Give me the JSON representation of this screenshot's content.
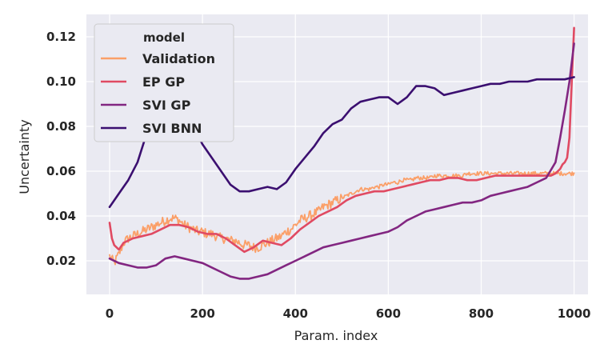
{
  "chart_data": {
    "type": "line",
    "title": "",
    "xlabel": "Param. index",
    "ylabel": "Uncertainty",
    "xlim": [
      -50,
      1030
    ],
    "ylim": [
      0.005,
      0.13
    ],
    "xticks": [
      0,
      200,
      400,
      600,
      800,
      1000
    ],
    "xtick_labels": [
      "0",
      "200",
      "400",
      "600",
      "800",
      "1000"
    ],
    "yticks": [
      0.02,
      0.04,
      0.06,
      0.08,
      0.1,
      0.12
    ],
    "ytick_labels": [
      "0.02",
      "0.04",
      "0.06",
      "0.08",
      "0.10",
      "0.12"
    ],
    "grid": true,
    "background": "#eaeaf2",
    "legend": {
      "title": "model",
      "placement": "top-left"
    },
    "series": [
      {
        "name": "Validation",
        "color": "#fb9f68",
        "noisy": true,
        "x": [
          0,
          10,
          20,
          30,
          40,
          50,
          60,
          70,
          80,
          90,
          100,
          110,
          120,
          130,
          140,
          150,
          160,
          170,
          180,
          190,
          200,
          210,
          220,
          230,
          240,
          250,
          260,
          270,
          280,
          290,
          300,
          310,
          320,
          330,
          340,
          350,
          360,
          370,
          380,
          390,
          400,
          410,
          420,
          430,
          440,
          450,
          460,
          470,
          480,
          490,
          500,
          510,
          520,
          530,
          540,
          550,
          560,
          570,
          580,
          590,
          600,
          610,
          620,
          630,
          640,
          650,
          660,
          670,
          680,
          690,
          700,
          710,
          720,
          730,
          740,
          750,
          760,
          770,
          780,
          790,
          800,
          810,
          820,
          830,
          840,
          850,
          860,
          870,
          880,
          890,
          900,
          910,
          920,
          930,
          940,
          950,
          960,
          970,
          980,
          990,
          1000
        ],
        "y": [
          0.022,
          0.019,
          0.023,
          0.028,
          0.03,
          0.031,
          0.032,
          0.033,
          0.034,
          0.035,
          0.036,
          0.037,
          0.038,
          0.039,
          0.039,
          0.038,
          0.036,
          0.035,
          0.034,
          0.033,
          0.033,
          0.032,
          0.032,
          0.031,
          0.03,
          0.03,
          0.029,
          0.029,
          0.028,
          0.027,
          0.027,
          0.026,
          0.026,
          0.027,
          0.028,
          0.029,
          0.03,
          0.031,
          0.033,
          0.034,
          0.036,
          0.038,
          0.039,
          0.04,
          0.041,
          0.042,
          0.044,
          0.045,
          0.046,
          0.047,
          0.048,
          0.049,
          0.05,
          0.051,
          0.052,
          0.052,
          0.052,
          0.053,
          0.053,
          0.054,
          0.054,
          0.055,
          0.055,
          0.056,
          0.056,
          0.056,
          0.057,
          0.057,
          0.057,
          0.057,
          0.058,
          0.058,
          0.058,
          0.058,
          0.058,
          0.058,
          0.058,
          0.059,
          0.059,
          0.059,
          0.059,
          0.059,
          0.059,
          0.059,
          0.059,
          0.059,
          0.059,
          0.059,
          0.059,
          0.059,
          0.059,
          0.059,
          0.059,
          0.059,
          0.059,
          0.059,
          0.059,
          0.059,
          0.059,
          0.059,
          0.059
        ]
      },
      {
        "name": "EP GP",
        "color": "#e04a62",
        "x": [
          0,
          5,
          10,
          20,
          30,
          50,
          70,
          90,
          110,
          130,
          150,
          170,
          190,
          210,
          230,
          250,
          270,
          290,
          310,
          330,
          350,
          370,
          390,
          410,
          430,
          450,
          470,
          490,
          510,
          530,
          550,
          570,
          590,
          610,
          630,
          650,
          670,
          690,
          710,
          730,
          750,
          770,
          790,
          810,
          830,
          850,
          870,
          890,
          910,
          930,
          950,
          960,
          970,
          975,
          980,
          985,
          990,
          995,
          1000
        ],
        "y": [
          0.037,
          0.03,
          0.027,
          0.025,
          0.028,
          0.03,
          0.031,
          0.032,
          0.034,
          0.036,
          0.036,
          0.035,
          0.033,
          0.032,
          0.032,
          0.03,
          0.027,
          0.024,
          0.026,
          0.029,
          0.028,
          0.027,
          0.03,
          0.034,
          0.037,
          0.04,
          0.042,
          0.044,
          0.047,
          0.049,
          0.05,
          0.051,
          0.051,
          0.052,
          0.053,
          0.054,
          0.055,
          0.056,
          0.056,
          0.057,
          0.057,
          0.056,
          0.056,
          0.057,
          0.058,
          0.058,
          0.058,
          0.058,
          0.058,
          0.058,
          0.058,
          0.059,
          0.061,
          0.063,
          0.064,
          0.066,
          0.075,
          0.1,
          0.124
        ]
      },
      {
        "name": "SVI GP",
        "color": "#822681",
        "x": [
          0,
          20,
          40,
          60,
          80,
          100,
          120,
          140,
          160,
          180,
          200,
          220,
          240,
          260,
          280,
          300,
          320,
          340,
          360,
          380,
          400,
          420,
          440,
          460,
          480,
          500,
          520,
          540,
          560,
          580,
          600,
          620,
          640,
          660,
          680,
          700,
          720,
          740,
          760,
          780,
          800,
          820,
          840,
          860,
          880,
          900,
          920,
          940,
          960,
          970,
          980,
          990,
          1000
        ],
        "y": [
          0.021,
          0.019,
          0.018,
          0.017,
          0.017,
          0.018,
          0.021,
          0.022,
          0.021,
          0.02,
          0.019,
          0.017,
          0.015,
          0.013,
          0.012,
          0.012,
          0.013,
          0.014,
          0.016,
          0.018,
          0.02,
          0.022,
          0.024,
          0.026,
          0.027,
          0.028,
          0.029,
          0.03,
          0.031,
          0.032,
          0.033,
          0.035,
          0.038,
          0.04,
          0.042,
          0.043,
          0.044,
          0.045,
          0.046,
          0.046,
          0.047,
          0.049,
          0.05,
          0.051,
          0.052,
          0.053,
          0.055,
          0.057,
          0.064,
          0.075,
          0.087,
          0.1,
          0.117
        ]
      },
      {
        "name": "SVI BNN",
        "color": "#3b0f70",
        "x": [
          0,
          20,
          40,
          60,
          80,
          100,
          120,
          140,
          160,
          180,
          200,
          220,
          240,
          260,
          280,
          300,
          320,
          340,
          360,
          380,
          400,
          420,
          440,
          460,
          480,
          500,
          520,
          540,
          560,
          580,
          600,
          620,
          640,
          660,
          680,
          700,
          720,
          740,
          760,
          780,
          800,
          820,
          840,
          860,
          880,
          900,
          920,
          940,
          960,
          980,
          1000
        ],
        "y": [
          0.044,
          0.05,
          0.056,
          0.064,
          0.077,
          0.086,
          0.092,
          0.093,
          0.088,
          0.08,
          0.072,
          0.066,
          0.06,
          0.054,
          0.051,
          0.051,
          0.052,
          0.053,
          0.052,
          0.055,
          0.061,
          0.066,
          0.071,
          0.077,
          0.081,
          0.083,
          0.088,
          0.091,
          0.092,
          0.093,
          0.093,
          0.09,
          0.093,
          0.098,
          0.098,
          0.097,
          0.094,
          0.095,
          0.096,
          0.097,
          0.098,
          0.099,
          0.099,
          0.1,
          0.1,
          0.1,
          0.101,
          0.101,
          0.101,
          0.101,
          0.102
        ]
      }
    ]
  }
}
